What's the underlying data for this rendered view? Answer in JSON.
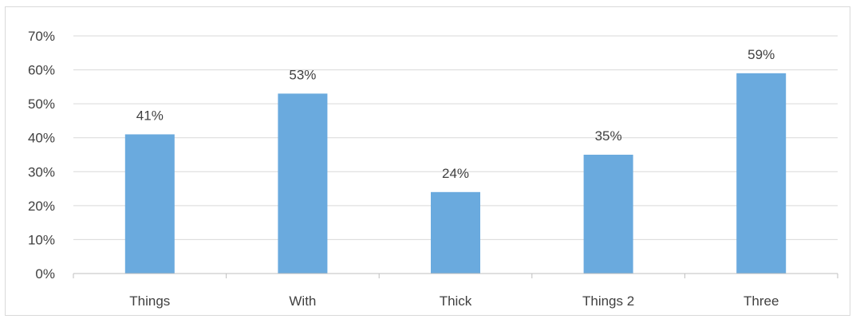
{
  "chart_data": {
    "type": "bar",
    "title": "",
    "xlabel": "",
    "ylabel": "",
    "categories": [
      "Things",
      "With",
      "Thick",
      "Things 2",
      "Three"
    ],
    "values": [
      41,
      53,
      24,
      35,
      59
    ],
    "data_labels": [
      "41%",
      "53%",
      "24%",
      "35%",
      "59%"
    ],
    "y_ticks": [
      {
        "value": 0,
        "label": "0%"
      },
      {
        "value": 10,
        "label": "10%"
      },
      {
        "value": 20,
        "label": "20%"
      },
      {
        "value": 30,
        "label": "30%"
      },
      {
        "value": 40,
        "label": "40%"
      },
      {
        "value": 50,
        "label": "50%"
      },
      {
        "value": 60,
        "label": "60%"
      },
      {
        "value": 70,
        "label": "70%"
      }
    ],
    "ylim": [
      0,
      70
    ],
    "grid": true,
    "legend": "none",
    "colors": {
      "bar": "#6aaade",
      "grid": "#d9d9d9",
      "axis": "#bfbfbf",
      "text": "#404040",
      "border": "#d9d9d9"
    }
  }
}
